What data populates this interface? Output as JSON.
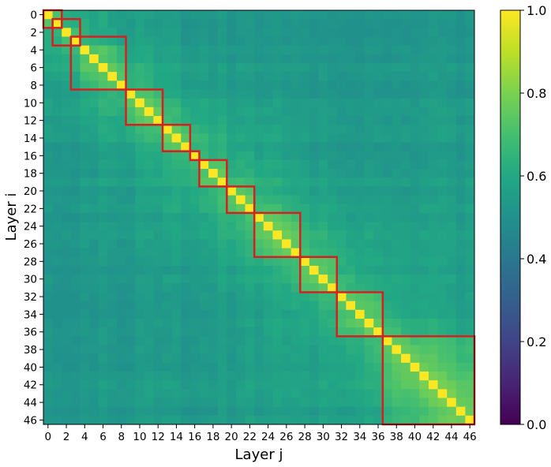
{
  "chart_data": {
    "type": "heatmap",
    "title": "",
    "xlabel": "Layer j",
    "ylabel": "Layer i",
    "n_layers": 47,
    "x_tick_labels": [
      "0",
      "2",
      "4",
      "6",
      "8",
      "10",
      "12",
      "14",
      "16",
      "18",
      "20",
      "22",
      "24",
      "26",
      "28",
      "30",
      "32",
      "34",
      "36",
      "38",
      "40",
      "42",
      "44",
      "46"
    ],
    "y_tick_labels": [
      "0",
      "2",
      "4",
      "6",
      "8",
      "10",
      "12",
      "14",
      "16",
      "18",
      "20",
      "22",
      "24",
      "26",
      "28",
      "30",
      "32",
      "34",
      "36",
      "38",
      "40",
      "42",
      "44",
      "46"
    ],
    "colormap": "viridis",
    "vmin": 0.0,
    "vmax": 1.0,
    "colorbar_tick_labels": [
      "0.0",
      "0.2",
      "0.4",
      "0.6",
      "0.8",
      "1.0"
    ],
    "diagonal_value": 1.0,
    "off_diagonal_range": [
      0.5,
      0.8
    ],
    "highlighted_blocks": [
      {
        "start": 0,
        "end": 1
      },
      {
        "start": 1,
        "end": 3
      },
      {
        "start": 3,
        "end": 8
      },
      {
        "start": 9,
        "end": 12
      },
      {
        "start": 13,
        "end": 15
      },
      {
        "start": 16,
        "end": 16
      },
      {
        "start": 17,
        "end": 19
      },
      {
        "start": 20,
        "end": 22
      },
      {
        "start": 23,
        "end": 27
      },
      {
        "start": 28,
        "end": 31
      },
      {
        "start": 32,
        "end": 36
      },
      {
        "start": 37,
        "end": 46
      }
    ],
    "block_color": "#d62020",
    "grid": false
  }
}
